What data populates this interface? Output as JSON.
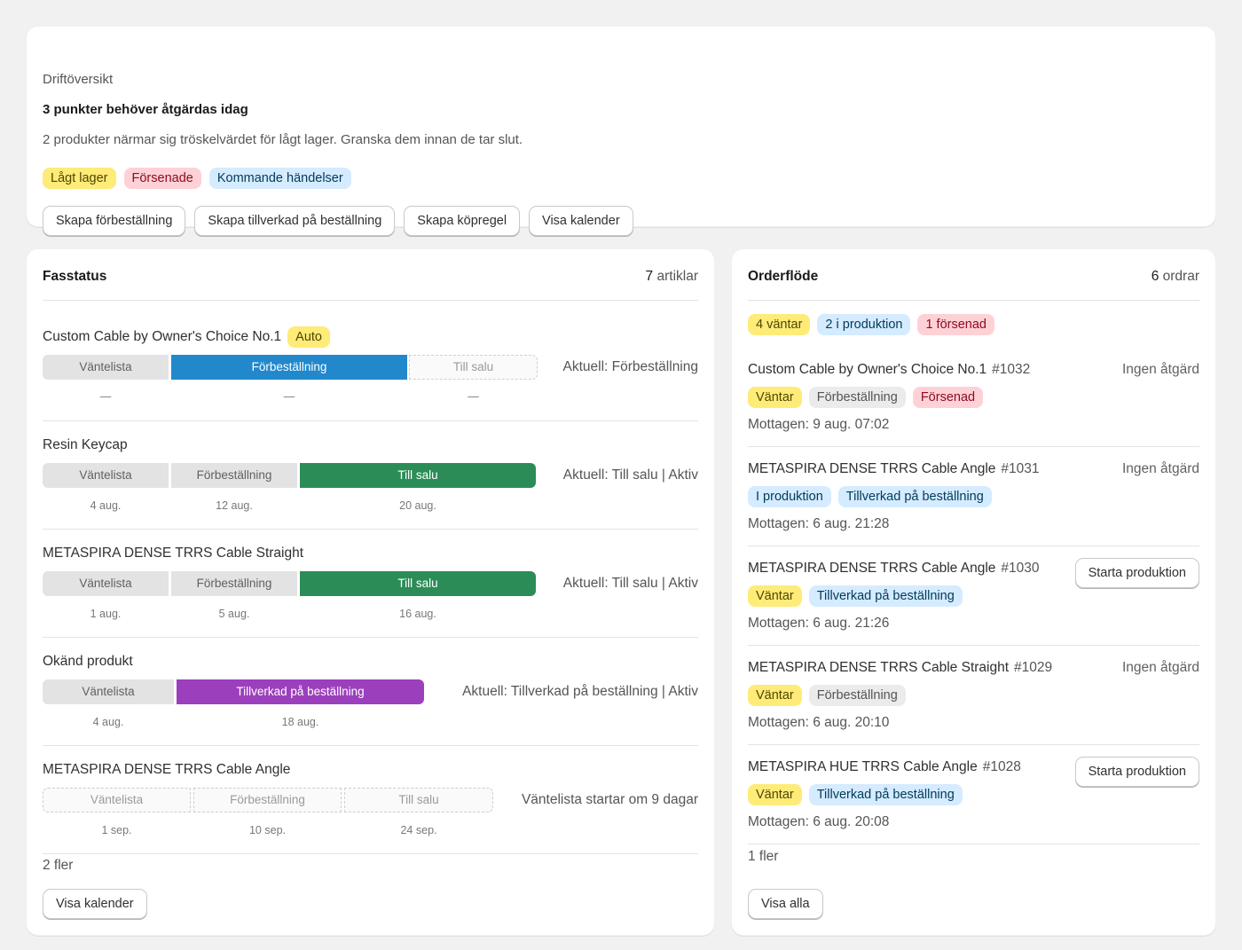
{
  "overview": {
    "label": "Driftöversikt",
    "title": "3 punkter behöver åtgärdas idag",
    "description": "2 produkter närmar sig tröskelvärdet för lågt lager. Granska dem innan de tar slut.",
    "badges": [
      "Lågt lager",
      "Försenade",
      "Kommande händelser"
    ],
    "buttons": [
      "Skapa förbeställning",
      "Skapa tillverkad på beställning",
      "Skapa köpregel",
      "Visa kalender"
    ]
  },
  "phase_status": {
    "title": "Fasstatus",
    "count_num": "7",
    "count_unit": "artiklar",
    "products": [
      {
        "name": "Custom Cable by Owner's Choice No.1",
        "badge": "Auto",
        "segments": [
          "Väntelista",
          "Förbeställning",
          "Till salu"
        ],
        "dates": [
          "—",
          "—",
          "—"
        ],
        "current": "Aktuell: Förbeställning"
      },
      {
        "name": "Resin Keycap",
        "segments": [
          "Väntelista",
          "Förbeställning",
          "Till salu"
        ],
        "dates": [
          "4 aug.",
          "12 aug.",
          "20 aug."
        ],
        "current": "Aktuell: Till salu | Aktiv"
      },
      {
        "name": "METASPIRA DENSE TRRS Cable Straight",
        "segments": [
          "Väntelista",
          "Förbeställning",
          "Till salu"
        ],
        "dates": [
          "1 aug.",
          "5 aug.",
          "16 aug."
        ],
        "current": "Aktuell: Till salu | Aktiv"
      },
      {
        "name": "Okänd produkt",
        "segments": [
          "Väntelista",
          "Tillverkad på beställning"
        ],
        "dates": [
          "4 aug.",
          "18 aug."
        ],
        "current": "Aktuell: Tillverkad på beställning | Aktiv"
      },
      {
        "name": "METASPIRA DENSE TRRS Cable Angle",
        "segments": [
          "Väntelista",
          "Förbeställning",
          "Till salu"
        ],
        "dates": [
          "1 sep.",
          "10 sep.",
          "24 sep."
        ],
        "current": "Väntelista startar om 9 dagar"
      }
    ],
    "more": "2 fler",
    "button": "Visa kalender"
  },
  "order_flow": {
    "title": "Orderflöde",
    "count_num": "6",
    "count_unit": "ordrar",
    "summary": [
      "4 väntar",
      "2 i produktion",
      "1 försenad"
    ],
    "orders": [
      {
        "name": "Custom Cable by Owner's Choice No.1",
        "number": "#1032",
        "action": "Ingen åtgärd",
        "badges": [
          "Väntar",
          "Förbeställning",
          "Försenad"
        ],
        "received": "Mottagen: 9 aug. 07:02"
      },
      {
        "name": "METASPIRA DENSE TRRS Cable Angle",
        "number": "#1031",
        "action": "Ingen åtgärd",
        "badges": [
          "I produktion",
          "Tillverkad på beställning"
        ],
        "received": "Mottagen: 6 aug. 21:28"
      },
      {
        "name": "METASPIRA DENSE TRRS Cable Angle",
        "number": "#1030",
        "action": "Starta produktion",
        "badges": [
          "Väntar",
          "Tillverkad på beställning"
        ],
        "received": "Mottagen: 6 aug. 21:26"
      },
      {
        "name": "METASPIRA DENSE TRRS Cable Straight",
        "number": "#1029",
        "action": "Ingen åtgärd",
        "badges": [
          "Väntar",
          "Förbeställning"
        ],
        "received": "Mottagen: 6 aug. 20:10"
      },
      {
        "name": "METASPIRA HUE TRRS Cable Angle",
        "number": "#1028",
        "action": "Starta produktion",
        "badges": [
          "Väntar",
          "Tillverkad på beställning"
        ],
        "received": "Mottagen: 6 aug. 20:08"
      }
    ],
    "more": "1 fler",
    "button": "Visa alla"
  },
  "colors": {
    "preorder": "#2288cc",
    "for_sale": "#2c8c57",
    "made_to_order": "#9c3fbd",
    "waitlist": "#e3e3e3"
  }
}
